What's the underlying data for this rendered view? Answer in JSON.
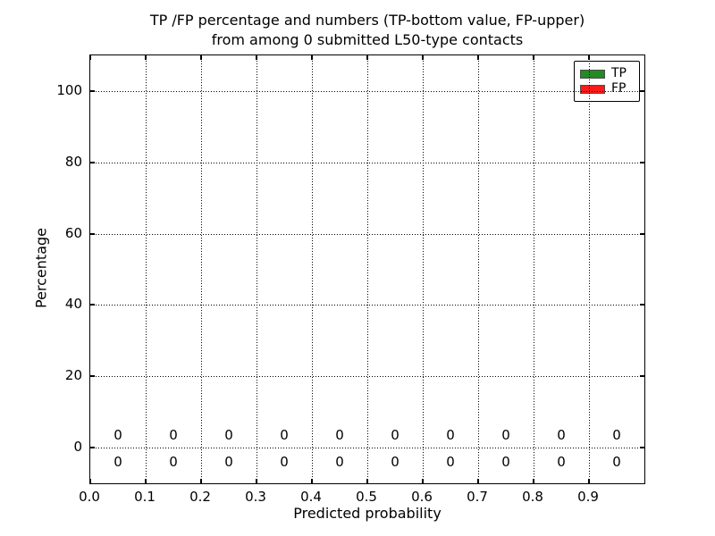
{
  "title": {
    "line1": "TP /FP percentage and numbers (TP-bottom value, FP-upper)",
    "line2": "from among 0 submitted L50-type contacts"
  },
  "axes": {
    "x_label": "Predicted probability",
    "y_label": "Percentage",
    "x_ticks": [
      "0.0",
      "0.1",
      "0.2",
      "0.3",
      "0.4",
      "0.5",
      "0.6",
      "0.7",
      "0.8",
      "0.9"
    ],
    "y_ticks": [
      "100",
      "80",
      "60",
      "40",
      "20",
      "0"
    ]
  },
  "legend": {
    "items": [
      {
        "label": "TP",
        "color": "#228B22"
      },
      {
        "label": "FP",
        "color": "#FF1A1A"
      }
    ]
  },
  "chart_data": {
    "type": "bar",
    "stacked": true,
    "title": "TP /FP percentage and numbers (TP-bottom value, FP-upper) from among 0 submitted L50-type contacts",
    "xlabel": "Predicted probability",
    "ylabel": "Percentage",
    "xlim": [
      0.0,
      1.0
    ],
    "ylim": [
      -10,
      110
    ],
    "x_tick_values": [
      0.0,
      0.1,
      0.2,
      0.3,
      0.4,
      0.5,
      0.6,
      0.7,
      0.8,
      0.9
    ],
    "y_tick_values": [
      0,
      20,
      40,
      60,
      80,
      100
    ],
    "grid": "dotted",
    "legend_position": "upper right",
    "bin_centers": [
      0.05,
      0.15,
      0.25,
      0.35,
      0.45,
      0.55,
      0.65,
      0.75,
      0.85,
      0.95
    ],
    "series": [
      {
        "name": "TP",
        "color": "#228B22",
        "values": [
          0,
          0,
          0,
          0,
          0,
          0,
          0,
          0,
          0,
          0
        ]
      },
      {
        "name": "FP",
        "color": "#FF1A1A",
        "values": [
          0,
          0,
          0,
          0,
          0,
          0,
          0,
          0,
          0,
          0
        ]
      }
    ],
    "annotations": {
      "fp_upper_row": [
        "0",
        "0",
        "0",
        "0",
        "0",
        "0",
        "0",
        "0",
        "0",
        "0"
      ],
      "tp_lower_row": [
        "0",
        "0",
        "0",
        "0",
        "0",
        "0",
        "0",
        "0",
        "0",
        "0"
      ]
    }
  }
}
